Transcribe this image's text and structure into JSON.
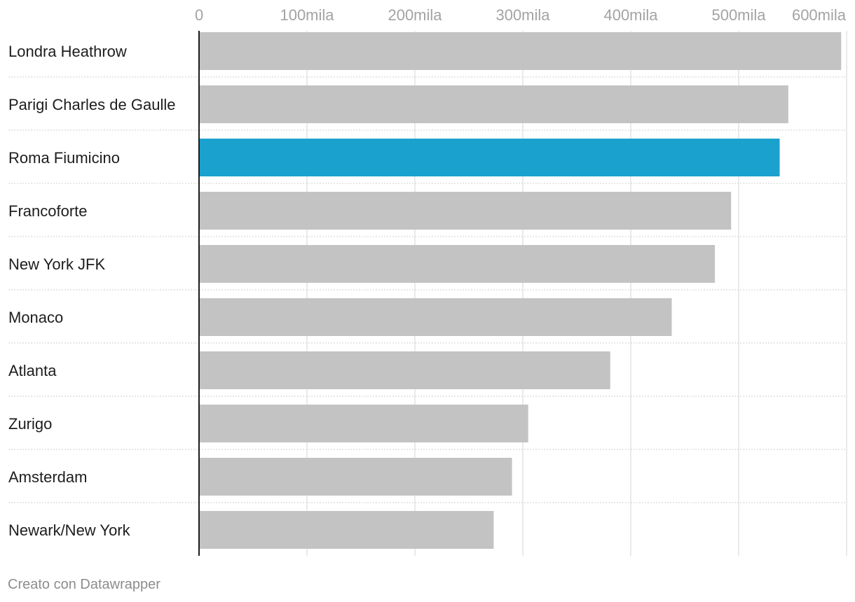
{
  "chart_data": {
    "type": "bar",
    "orientation": "horizontal",
    "categories": [
      "Londra Heathrow",
      "Parigi Charles de Gaulle",
      "Roma Fiumicino",
      "Francoforte",
      "New York JFK",
      "Monaco",
      "Atlanta",
      "Zurigo",
      "Amsterdam",
      "Newark/New York"
    ],
    "values": [
      595000,
      546000,
      538000,
      493000,
      478000,
      438000,
      381000,
      305000,
      290000,
      273000
    ],
    "xlim": [
      0,
      600000
    ],
    "ticks": [
      {
        "value": 0,
        "label": "0"
      },
      {
        "value": 100000,
        "label": "100mila"
      },
      {
        "value": 200000,
        "label": "200mila"
      },
      {
        "value": 300000,
        "label": "300mila"
      },
      {
        "value": 400000,
        "label": "400mila"
      },
      {
        "value": 500000,
        "label": "500mila"
      },
      {
        "value": 600000,
        "label": "600mila"
      }
    ],
    "grid": true,
    "highlight_category": "Roma Fiumicino",
    "colors": {
      "bar": "#c3c3c3",
      "highlight": "#1aa1ce",
      "grid": "#e3e3e3",
      "separator": "#cfcfcf",
      "axis": "#1d1d1d"
    }
  },
  "footer": {
    "credit": "Creato con Datawrapper"
  }
}
